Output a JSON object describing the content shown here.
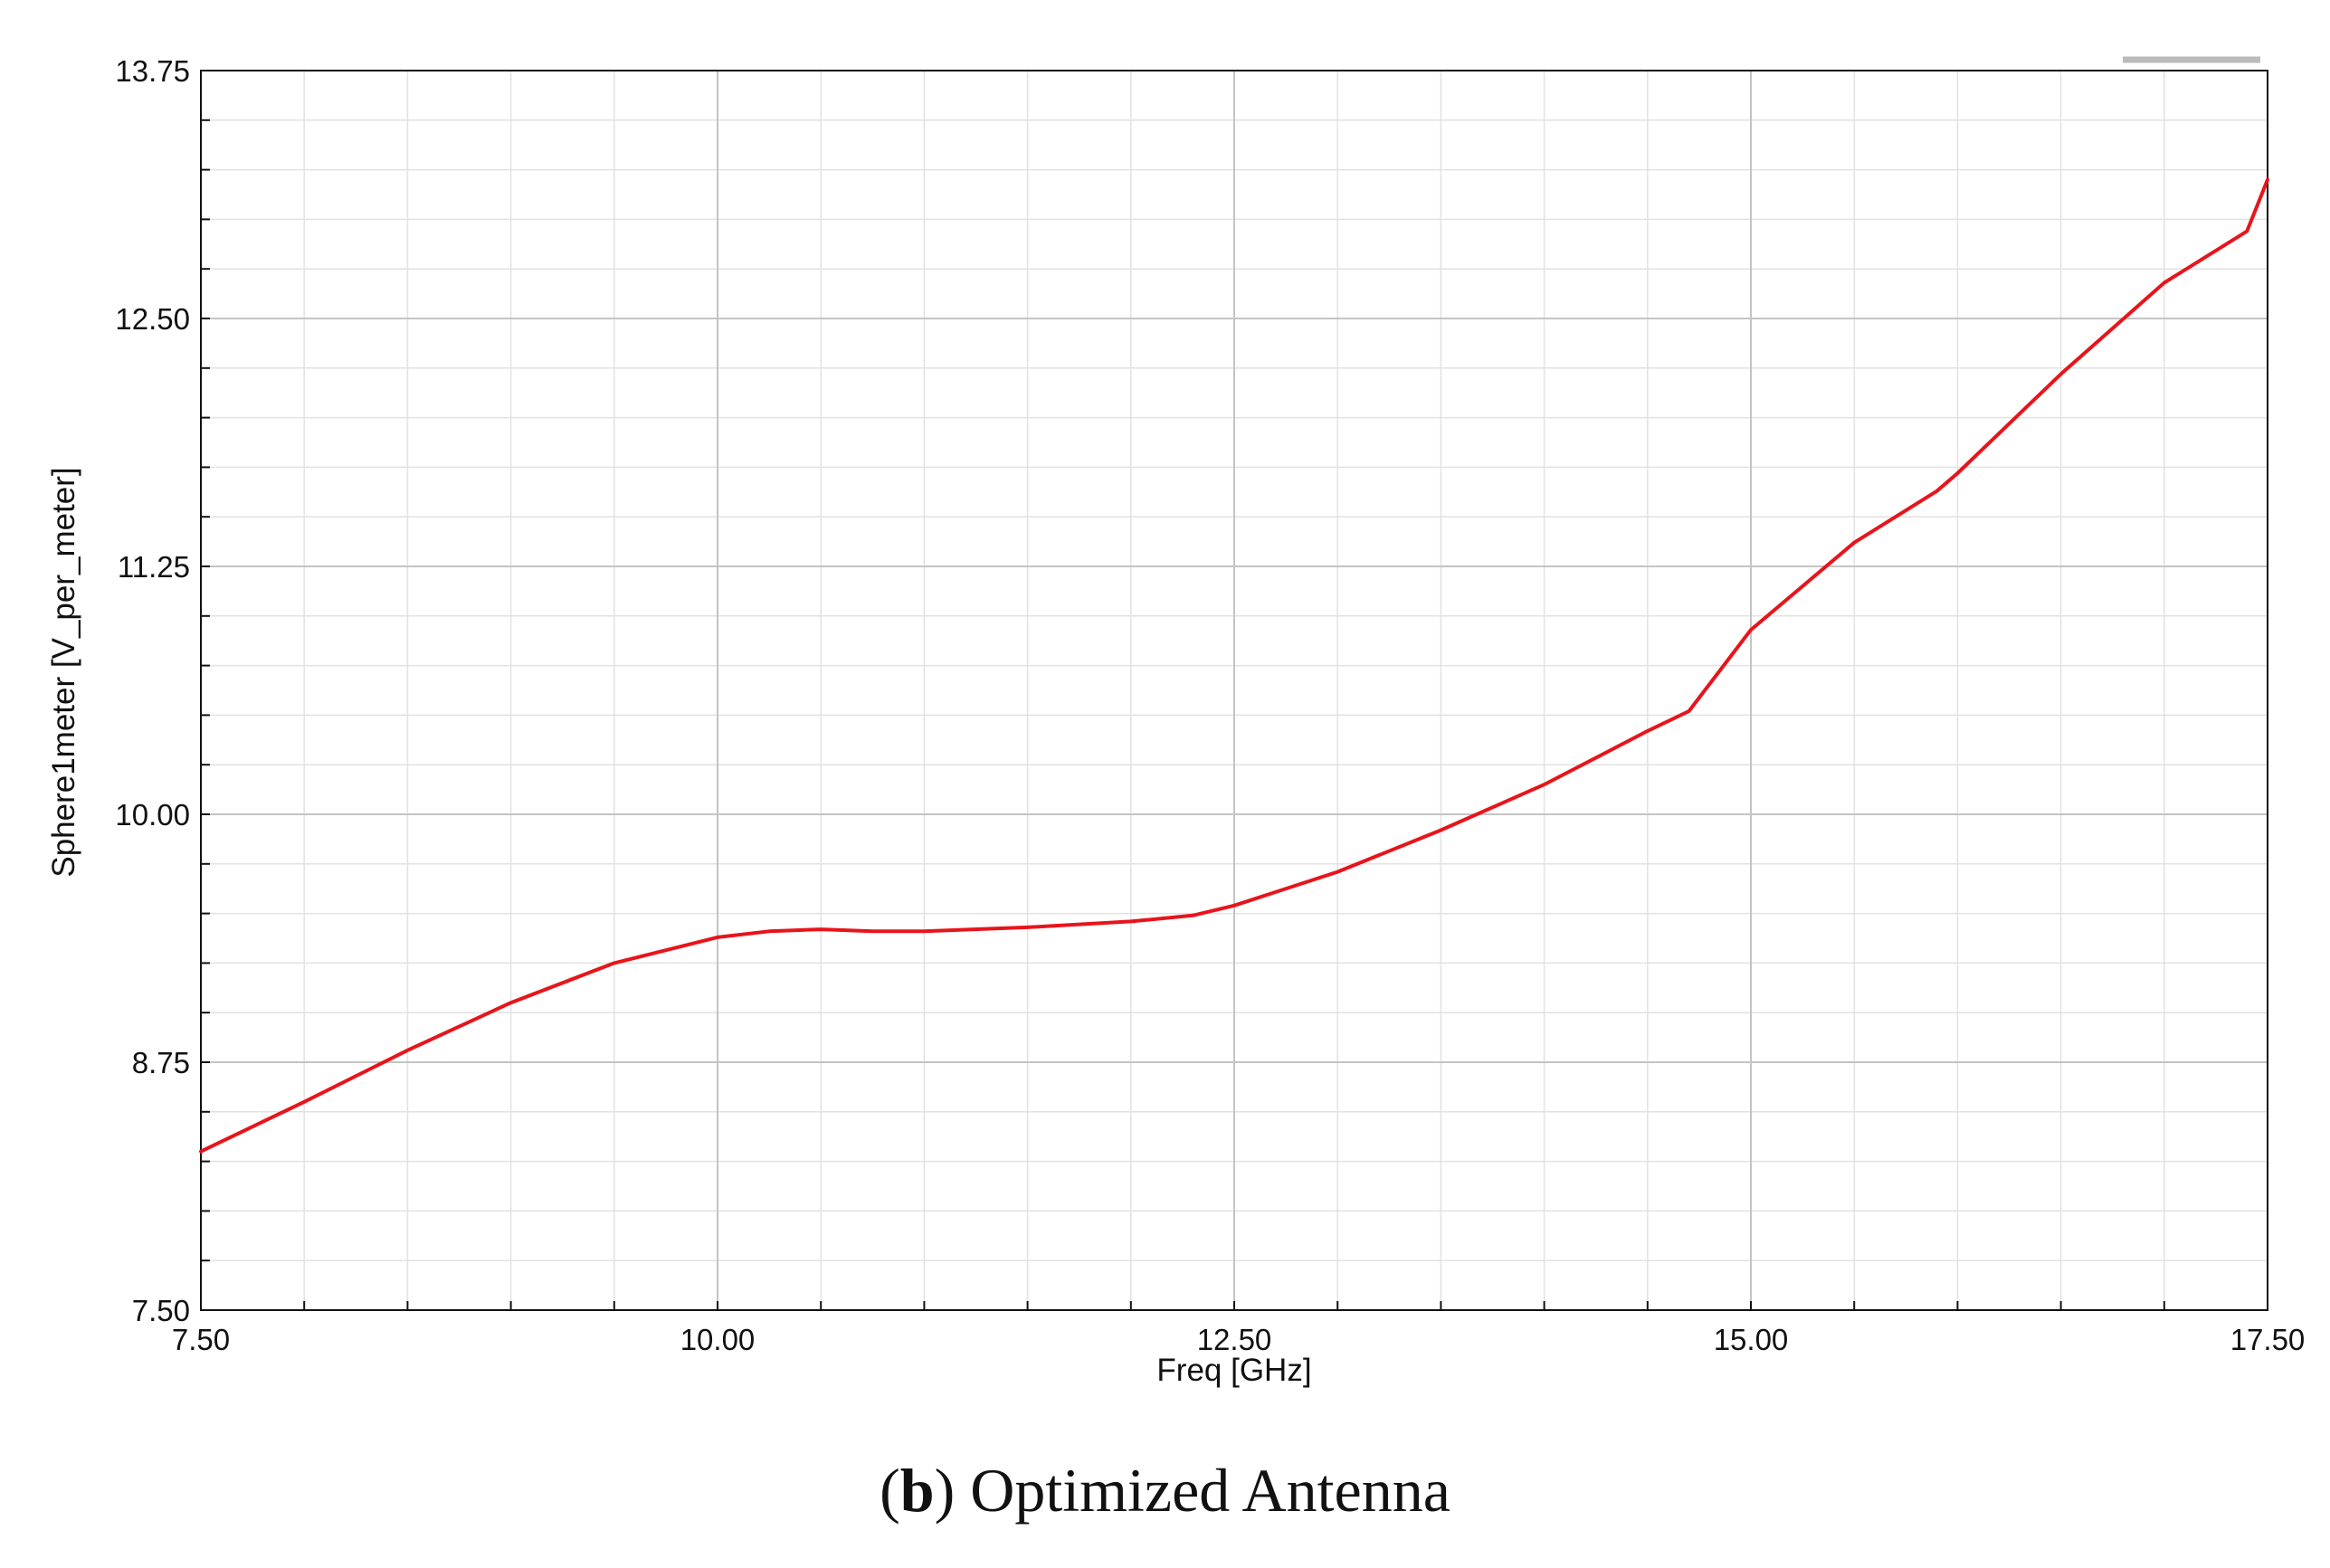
{
  "chart_data": {
    "type": "line",
    "title": "",
    "xlabel": "Freq [GHz]",
    "ylabel": "Sphere1meter [V_per_meter]",
    "xlim": [
      7.5,
      17.5
    ],
    "ylim": [
      7.5,
      13.75
    ],
    "x_ticks": [
      "7.50",
      "10.00",
      "12.50",
      "15.00",
      "17.50"
    ],
    "y_ticks": [
      "7.50",
      "8.75",
      "10.00",
      "11.25",
      "12.50",
      "13.75"
    ],
    "grid": true,
    "legend": "top-right",
    "series": [
      {
        "color": "#e8141b",
        "x": [
          7.5,
          8.0,
          8.5,
          9.0,
          9.5,
          10.0,
          10.25,
          10.5,
          10.75,
          11.0,
          11.5,
          12.0,
          12.3,
          12.5,
          13.0,
          13.5,
          14.0,
          14.5,
          14.7,
          15.0,
          15.5,
          15.9,
          16.0,
          16.5,
          17.0,
          17.4,
          17.5
        ],
        "y": [
          8.3,
          8.55,
          8.81,
          9.05,
          9.25,
          9.38,
          9.41,
          9.42,
          9.41,
          9.41,
          9.43,
          9.46,
          9.49,
          9.54,
          9.71,
          9.92,
          10.15,
          10.42,
          10.52,
          10.93,
          11.37,
          11.63,
          11.72,
          12.22,
          12.68,
          12.94,
          13.2
        ]
      }
    ]
  },
  "caption": {
    "label": "b",
    "text": " Optimized Antenna"
  }
}
